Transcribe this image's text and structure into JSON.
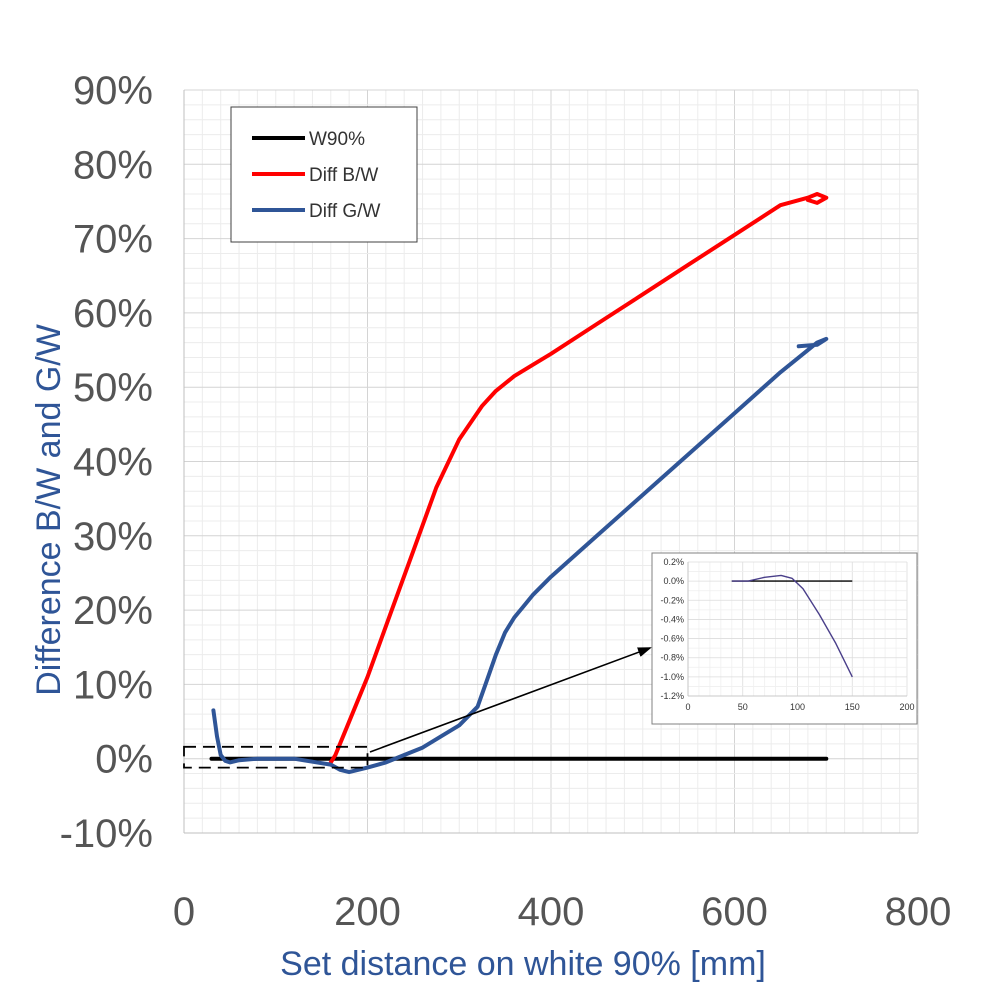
{
  "chart_data": {
    "type": "line",
    "title": "",
    "xlabel": "Set distance on white 90% [mm]",
    "ylabel": "Difference B/W and G/W",
    "xlim": [
      0,
      800
    ],
    "ylim": [
      -10,
      90
    ],
    "x_ticks": [
      0,
      200,
      400,
      600,
      800
    ],
    "x_tick_labels": [
      "0",
      "200",
      "400",
      "600",
      "800"
    ],
    "y_ticks": [
      -10,
      0,
      10,
      20,
      30,
      40,
      50,
      60,
      70,
      80,
      90
    ],
    "y_tick_labels": [
      "-10%",
      "0%",
      "10%",
      "20%",
      "30%",
      "40%",
      "50%",
      "60%",
      "70%",
      "80%",
      "90%"
    ],
    "grid": true,
    "legend_position": "top-left",
    "series": [
      {
        "name": "W90%",
        "color": "#000000",
        "x": [
          30,
          100,
          200,
          300,
          400,
          500,
          600,
          700
        ],
        "y": [
          0,
          0,
          0,
          0,
          0,
          0,
          0,
          0
        ]
      },
      {
        "name": "Diff B/W",
        "color": "#FF0000",
        "x": [
          160,
          165,
          175,
          200,
          225,
          250,
          275,
          300,
          325,
          340,
          360,
          380,
          400,
          450,
          500,
          550,
          600,
          650,
          680,
          690,
          700,
          690,
          680
        ],
        "y": [
          -0.5,
          0.5,
          3.5,
          11,
          19.5,
          28,
          36.5,
          43,
          47.5,
          49.5,
          51.5,
          53,
          54.5,
          58.5,
          62.5,
          66.5,
          70.5,
          74.5,
          75.5,
          76,
          75.5,
          74.8,
          75.2
        ]
      },
      {
        "name": "Diff G/W",
        "color": "#2F5597",
        "x": [
          32,
          36,
          40,
          45,
          50,
          60,
          80,
          100,
          120,
          140,
          160,
          170,
          180,
          190,
          200,
          220,
          240,
          260,
          280,
          300,
          320,
          330,
          340,
          350,
          360,
          370,
          380,
          400,
          450,
          500,
          550,
          600,
          650,
          680,
          690,
          700,
          690,
          670
        ],
        "y": [
          6.5,
          3,
          0.5,
          -0.3,
          -0.5,
          -0.2,
          0,
          0,
          0,
          -0.4,
          -0.8,
          -1.5,
          -1.8,
          -1.5,
          -1.2,
          -0.5,
          0.5,
          1.5,
          3,
          4.5,
          7,
          10.5,
          14,
          17,
          19,
          20.5,
          22,
          24.5,
          30,
          35.5,
          41,
          46.5,
          52,
          55,
          56,
          56.5,
          55.7,
          55.5
        ]
      }
    ],
    "annotations": [
      {
        "type": "zoom-box",
        "x_range": [
          0,
          200
        ],
        "y_range": [
          -1.2,
          1.6
        ]
      }
    ],
    "inset": {
      "type": "line",
      "xlim": [
        0,
        200
      ],
      "ylim": [
        -1.2,
        0.2
      ],
      "x_ticks": [
        0,
        50,
        100,
        150,
        200
      ],
      "x_tick_labels": [
        "0",
        "50",
        "100",
        "150",
        "200"
      ],
      "y_ticks": [
        0.2,
        0,
        -0.2,
        -0.4,
        -0.6,
        -0.8,
        -1.0,
        -1.2
      ],
      "y_tick_labels": [
        "0.2%",
        "0.0%",
        "-0.2%",
        "-0.4%",
        "-0.6%",
        "-0.8%",
        "-1.0%",
        "-1.2%"
      ],
      "series": [
        {
          "color": "#000000",
          "x": [
            40,
            150
          ],
          "y": [
            0,
            0
          ]
        },
        {
          "color": "#4A3F8A",
          "x": [
            40,
            55,
            70,
            85,
            95,
            105,
            120,
            135,
            150
          ],
          "y": [
            0,
            0,
            0.04,
            0.06,
            0.03,
            -0.08,
            -0.35,
            -0.65,
            -1.0
          ]
        }
      ]
    }
  }
}
